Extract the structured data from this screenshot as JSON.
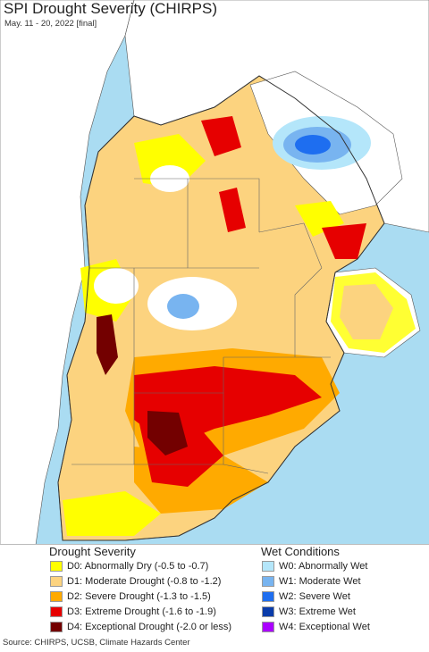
{
  "header": {
    "title": "SPI Drought Severity (CHIRPS)",
    "subtitle": "May. 11 - 20, 2022 [final]"
  },
  "colors": {
    "ocean": "#aadcf2",
    "land_outside": "#ffffff",
    "border": "#333333"
  },
  "legend": {
    "drought_title": "Drought Severity",
    "wet_title": "Wet Conditions",
    "drought": [
      {
        "label": "D0: Abnormally Dry (-0.5 to -0.7)",
        "color": "#ffff00"
      },
      {
        "label": "D1: Moderate Drought (-0.8 to -1.2)",
        "color": "#fcd37f"
      },
      {
        "label": "D2: Severe Drought (-1.3 to -1.5)",
        "color": "#ffaa00"
      },
      {
        "label": "D3: Extreme Drought (-1.6 to -1.9)",
        "color": "#e60000"
      },
      {
        "label": "D4: Exceptional Drought (-2.0 or less)",
        "color": "#730000"
      }
    ],
    "wet": [
      {
        "label": "W0: Abnormally Wet",
        "color": "#b4e6fa"
      },
      {
        "label": "W1: Moderate Wet",
        "color": "#78b4f0"
      },
      {
        "label": "W2: Severe Wet",
        "color": "#1e6ef0"
      },
      {
        "label": "W3: Extreme Wet",
        "color": "#0a3caa"
      },
      {
        "label": "W4: Exceptional Wet",
        "color": "#aa00ff"
      }
    ]
  },
  "footer": {
    "source": "Source: CHIRPS, UCSB, Climate Hazards Center"
  }
}
